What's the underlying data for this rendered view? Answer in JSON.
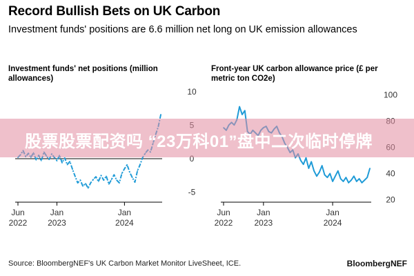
{
  "header": {
    "title": "Record Bullish Bets on UK Carbon",
    "subtitle": "Investment funds' positions are 6.6 million net long on UK emission allowances"
  },
  "footer": {
    "source": "Source: BloombergNEF's UK Carbon Market Monitor LiveSheet, ICE.",
    "brand": "BloombergNEF"
  },
  "watermark": {
    "text": "股票股票配资吗 “23万科01”盘中二次临时停牌"
  },
  "colors": {
    "line": "#1f9bd7",
    "axis": "#000000",
    "zero": "#000000",
    "watermark": "#e28ca0"
  },
  "chart_data": [
    {
      "type": "line",
      "title": "Investment funds' net positions (million allowances)",
      "x_unit": "weeks since start of 2022",
      "x_range": [
        22,
        133
      ],
      "ylim": [
        -7,
        10.5
      ],
      "yticks": [
        10,
        5,
        0,
        -5
      ],
      "ytick_labels": [
        "10",
        "5",
        "0",
        "-5"
      ],
      "xticks": [
        {
          "pos": 22,
          "line1": "Jun",
          "line2": "2022"
        },
        {
          "pos": 52,
          "line1": "Jan",
          "line2": "2023"
        },
        {
          "pos": 104,
          "line1": "Jan",
          "line2": "2024"
        }
      ],
      "zero_line": 0,
      "style": "dashed-dotted",
      "x": [
        22,
        24,
        26,
        28,
        30,
        32,
        34,
        36,
        38,
        40,
        42,
        44,
        46,
        48,
        50,
        52,
        54,
        56,
        58,
        60,
        62,
        64,
        66,
        68,
        70,
        72,
        74,
        76,
        78,
        80,
        82,
        84,
        86,
        88,
        90,
        92,
        94,
        96,
        98,
        100,
        102,
        104,
        106,
        108,
        110,
        112,
        114,
        116,
        118,
        120,
        122,
        124,
        126,
        128,
        130,
        132
      ],
      "values": [
        0.2,
        0.6,
        1.2,
        0.3,
        0.8,
        0.2,
        0.9,
        -0.2,
        0.5,
        -0.3,
        1.0,
        0.4,
        -0.1,
        0.7,
        0.2,
        -0.3,
        0.5,
        -0.6,
        0.1,
        -0.9,
        -0.4,
        -1.6,
        -2.6,
        -3.6,
        -3.2,
        -4.1,
        -3.7,
        -4.4,
        -3.6,
        -3.1,
        -2.7,
        -3.4,
        -2.5,
        -3.2,
        -2.6,
        -3.8,
        -3.1,
        -2.4,
        -3.2,
        -3.6,
        -2.2,
        -1.5,
        -0.9,
        -2.0,
        -2.8,
        -3.5,
        -1.8,
        -0.9,
        0.2,
        0.8,
        1.3,
        1.0,
        2.3,
        3.6,
        4.8,
        6.6
      ]
    },
    {
      "type": "line",
      "title": "Front-year UK carbon allowance price (£ per metric ton CO2e)",
      "x_unit": "weeks since start of 2022",
      "x_range": [
        22,
        133
      ],
      "ylim": [
        15,
        105
      ],
      "yticks": [
        100,
        80,
        60,
        40,
        20
      ],
      "ytick_labels": [
        "100",
        "80",
        "60",
        "40",
        "20"
      ],
      "xticks": [
        {
          "pos": 22,
          "line1": "Jun",
          "line2": "2022"
        },
        {
          "pos": 52,
          "line1": "Jan",
          "line2": "2023"
        },
        {
          "pos": 104,
          "line1": "Jan",
          "line2": "2024"
        }
      ],
      "x": [
        22,
        24,
        26,
        28,
        30,
        32,
        34,
        36,
        38,
        40,
        42,
        44,
        46,
        48,
        50,
        52,
        54,
        56,
        58,
        60,
        62,
        64,
        66,
        68,
        70,
        72,
        74,
        76,
        78,
        80,
        82,
        84,
        86,
        88,
        90,
        92,
        94,
        96,
        98,
        100,
        102,
        104,
        106,
        108,
        110,
        112,
        114,
        116,
        118,
        120,
        122,
        124,
        126,
        128,
        130,
        132
      ],
      "values": [
        75,
        73,
        77,
        79,
        77,
        81,
        91,
        85,
        88,
        72,
        70,
        73,
        71,
        69,
        73,
        75,
        76,
        72,
        71,
        74,
        76,
        71,
        68,
        63,
        60,
        56,
        58,
        52,
        55,
        50,
        47,
        52,
        44,
        49,
        42,
        38,
        41,
        46,
        39,
        37,
        40,
        34,
        38,
        42,
        36,
        34,
        37,
        33,
        35,
        38,
        34,
        36,
        33,
        35,
        37,
        44
      ]
    }
  ]
}
